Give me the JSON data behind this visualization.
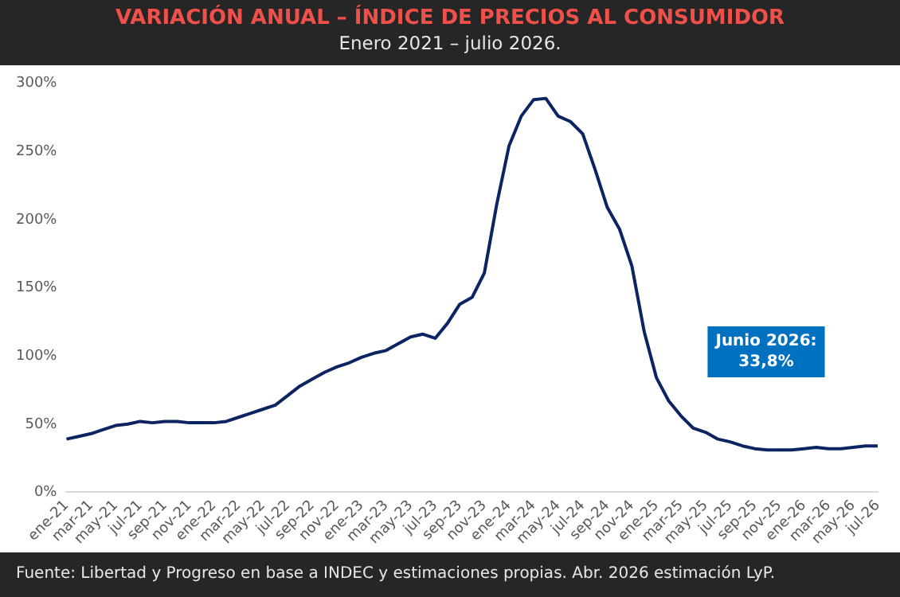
{
  "chart_data": {
    "type": "line",
    "title": "VARIACIÓN ANUAL – ÍNDICE DE PRECIOS AL CONSUMIDOR",
    "subtitle": "Enero 2021 – julio 2026.",
    "categories": [
      "ene-21",
      null,
      "mar-21",
      null,
      "may-21",
      null,
      "jul-21",
      null,
      "sep-21",
      null,
      "nov-21",
      null,
      "ene-22",
      null,
      "mar-22",
      null,
      "may-22",
      null,
      "jul-22",
      null,
      "sep-22",
      null,
      "nov-22",
      null,
      "ene-23",
      null,
      "mar-23",
      null,
      "may-23",
      null,
      "jul-23",
      null,
      "sep-23",
      null,
      "nov-23",
      null,
      "ene-24",
      null,
      "mar-24",
      null,
      "may-24",
      null,
      "jul-24",
      null,
      "sep-24",
      null,
      "nov-24",
      null,
      "ene-25",
      null,
      "mar-25",
      null,
      "may-25",
      null,
      "jul-25",
      null,
      "sep-25",
      null,
      "nov-25",
      null,
      "ene-26",
      null,
      "mar-26",
      null,
      "may-26",
      null,
      "jul-26"
    ],
    "series": [
      {
        "color": "#0d2463",
        "values": [
          39,
          41,
          43,
          46,
          49,
          50,
          52,
          51,
          52,
          52,
          51,
          51,
          51,
          52,
          55,
          58,
          61,
          64,
          71,
          78,
          83,
          88,
          92,
          95,
          99,
          102,
          104,
          109,
          114,
          116,
          113,
          124,
          138,
          143,
          161,
          211,
          254,
          276,
          288,
          289,
          276,
          272,
          263,
          237,
          209,
          193,
          166,
          118,
          84,
          67,
          56,
          47,
          44,
          39,
          37,
          34,
          32,
          31,
          31,
          31,
          32,
          33,
          32,
          32,
          33,
          34,
          34
        ]
      }
    ],
    "ylim": [
      0,
      300
    ],
    "yticks": [
      {
        "value": 0,
        "label": "0%"
      },
      {
        "value": 50,
        "label": "50%"
      },
      {
        "value": 100,
        "label": "100%"
      },
      {
        "value": 150,
        "label": "150%"
      },
      {
        "value": 200,
        "label": "200%"
      },
      {
        "value": 250,
        "label": "250%"
      },
      {
        "value": 300,
        "label": "300%"
      }
    ],
    "grid": false,
    "legend": false,
    "marker": "none",
    "line_style": "solid",
    "annotations": [
      "Junio 2026:\n33,8%",
      "Fuente: Libertad y Progreso en base a INDEC y estimaciones propias. Abr. 2026 estimación LyP."
    ]
  }
}
